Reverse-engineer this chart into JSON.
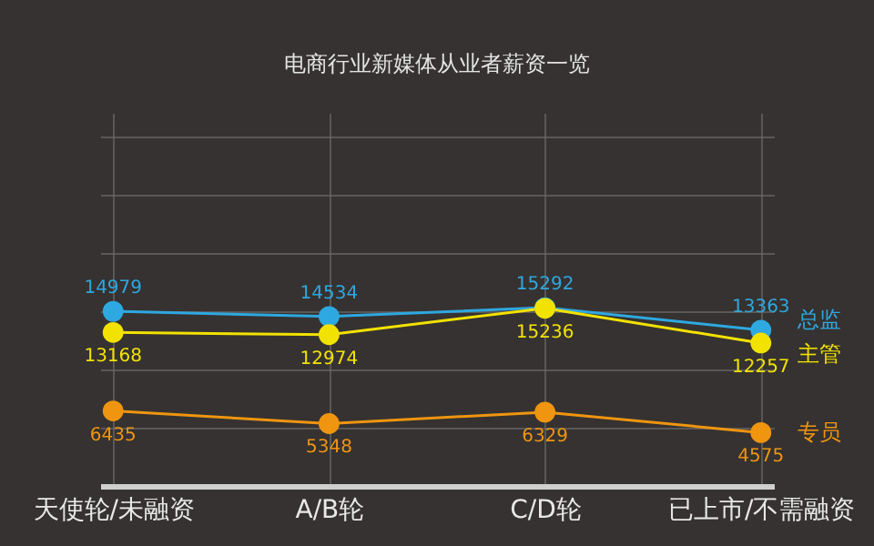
{
  "chart_data": {
    "type": "line",
    "title": "电商行业新媒体从业者薪资一览",
    "categories": [
      "天使轮/未融资",
      "A/B轮",
      "C/D轮",
      "已上市/不需融资"
    ],
    "series": [
      {
        "name": "总监",
        "color": "#2ea8e0",
        "values": [
          14979,
          14534,
          15292,
          13363
        ]
      },
      {
        "name": "主管",
        "color": "#f2e200",
        "values": [
          13168,
          12974,
          15236,
          12257
        ]
      },
      {
        "name": "专员",
        "color": "#ef9510",
        "values": [
          6435,
          5348,
          6329,
          4575
        ]
      }
    ],
    "ylim": [
      0,
      32000
    ],
    "tick_labels": "x",
    "grid": true,
    "legend": false,
    "marker": "circle",
    "data_labels": true
  }
}
